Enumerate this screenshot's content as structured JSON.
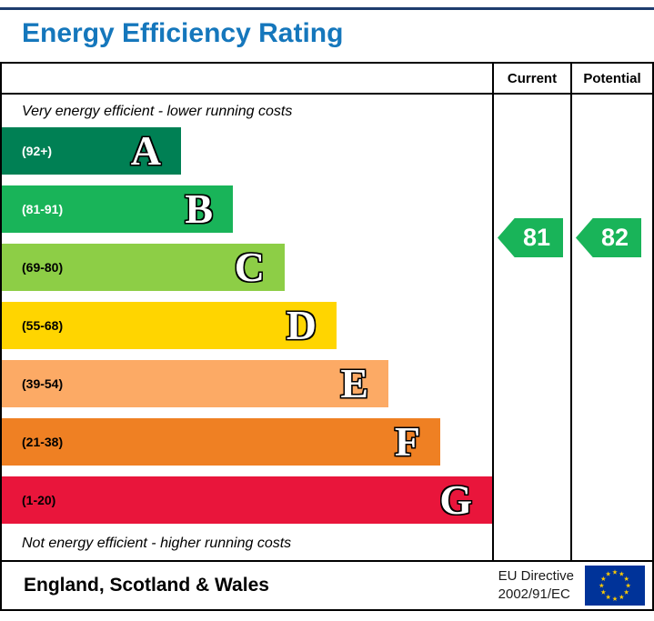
{
  "title": "Energy Efficiency Rating",
  "columns": {
    "current": "Current",
    "potential": "Potential"
  },
  "top_note": "Very energy efficient - lower running costs",
  "bottom_note": "Not energy efficient - higher running costs",
  "bands": [
    {
      "letter": "A",
      "range": "(92+)",
      "color": "#008054",
      "range_text_color": "#ffffff"
    },
    {
      "letter": "B",
      "range": "(81-91)",
      "color": "#19b459",
      "range_text_color": "#ffffff"
    },
    {
      "letter": "C",
      "range": "(69-80)",
      "color": "#8dce46",
      "range_text_color": "#000000"
    },
    {
      "letter": "D",
      "range": "(55-68)",
      "color": "#ffd500",
      "range_text_color": "#000000"
    },
    {
      "letter": "E",
      "range": "(39-54)",
      "color": "#fcaa65",
      "range_text_color": "#000000"
    },
    {
      "letter": "F",
      "range": "(21-38)",
      "color": "#ef8023",
      "range_text_color": "#000000"
    },
    {
      "letter": "G",
      "range": "(1-20)",
      "color": "#e9153b",
      "range_text_color": "#000000"
    }
  ],
  "ratings": {
    "current": "81",
    "potential": "82",
    "arrow_color": "#19b459"
  },
  "footer": {
    "region": "England, Scotland & Wales",
    "directive_line1": "EU Directive",
    "directive_line2": "2002/91/EC",
    "eu_flag": {
      "background": "#003399",
      "star_color": "#ffcc00"
    }
  },
  "accent": {
    "title_color": "#1577bc",
    "top_rule_color": "#1e3c6e"
  },
  "chart_data": {
    "type": "bar",
    "chart_kind": "energy-efficiency-rating",
    "title": "Energy Efficiency Rating",
    "categories": [
      "A",
      "B",
      "C",
      "D",
      "E",
      "F",
      "G"
    ],
    "band_ranges": [
      "92+",
      "81-91",
      "69-80",
      "55-68",
      "39-54",
      "21-38",
      "1-20"
    ],
    "band_colors": [
      "#008054",
      "#19b459",
      "#8dce46",
      "#ffd500",
      "#fcaa65",
      "#ef8023",
      "#e9153b"
    ],
    "markers": [
      {
        "name": "Current",
        "value": 81,
        "band": "B"
      },
      {
        "name": "Potential",
        "value": 82,
        "band": "B"
      }
    ],
    "annotations": [
      "Very energy efficient - lower running costs",
      "Not energy efficient - higher running costs"
    ],
    "footer": [
      "England, Scotland & Wales",
      "EU Directive 2002/91/EC"
    ],
    "legend_position": "none",
    "grid": false
  }
}
